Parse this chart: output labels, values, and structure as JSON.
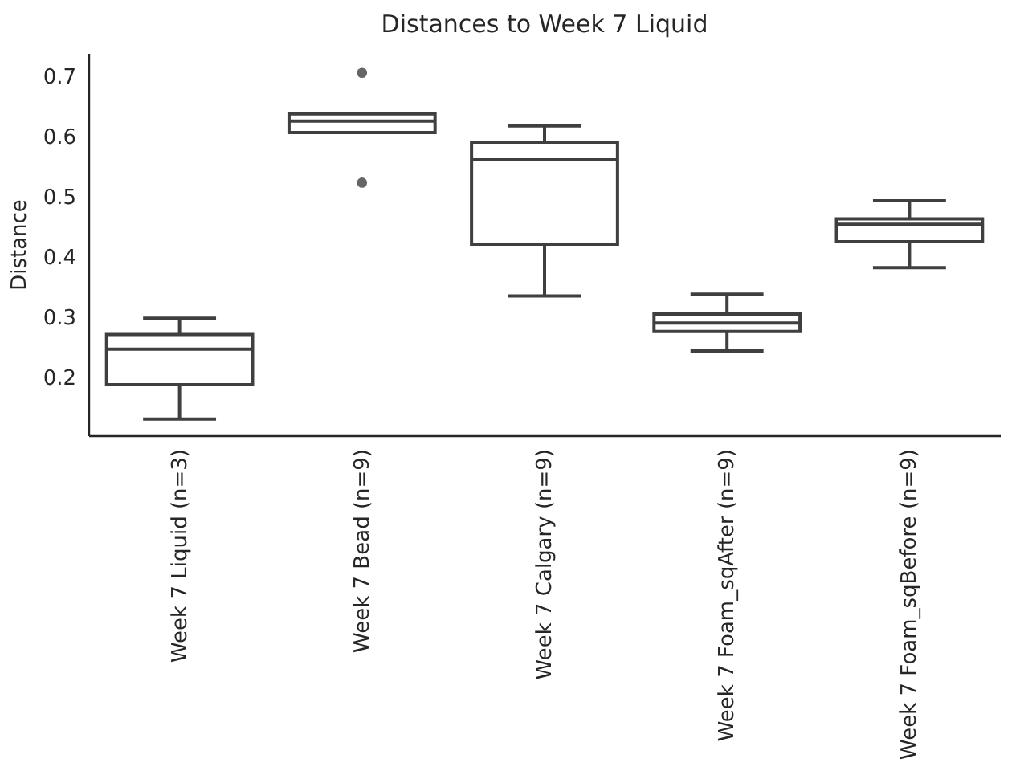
{
  "chart_data": {
    "type": "box",
    "title": "Distances to Week 7 Liquid",
    "ylabel": "Distance",
    "categories": [
      "Week 7 Liquid (n=3)",
      "Week 7 Bead (n=9)",
      "Week 7 Calgary (n=9)",
      "Week 7 Foam_sqAfter (n=9)",
      "Week 7 Foam_sqBefore (n=9)"
    ],
    "color": "#3f3f3f",
    "boxes": [
      {
        "low": 0.131,
        "q1": 0.188,
        "median": 0.247,
        "q3": 0.271,
        "high": 0.298
      },
      {
        "low": 0.606,
        "q1": 0.606,
        "median": 0.625,
        "q3": 0.637,
        "high": 0.637,
        "outliers": [
          0.523,
          0.705
        ]
      },
      {
        "low": 0.335,
        "q1": 0.421,
        "median": 0.561,
        "q3": 0.59,
        "high": 0.617
      },
      {
        "low": 0.244,
        "q1": 0.276,
        "median": 0.29,
        "q3": 0.305,
        "high": 0.338
      },
      {
        "low": 0.382,
        "q1": 0.425,
        "median": 0.454,
        "q3": 0.463,
        "high": 0.493
      }
    ],
    "ylim": [
      0.104,
      0.738
    ],
    "yticks": [
      0.2,
      0.3,
      0.4,
      0.5,
      0.6,
      0.7
    ]
  }
}
